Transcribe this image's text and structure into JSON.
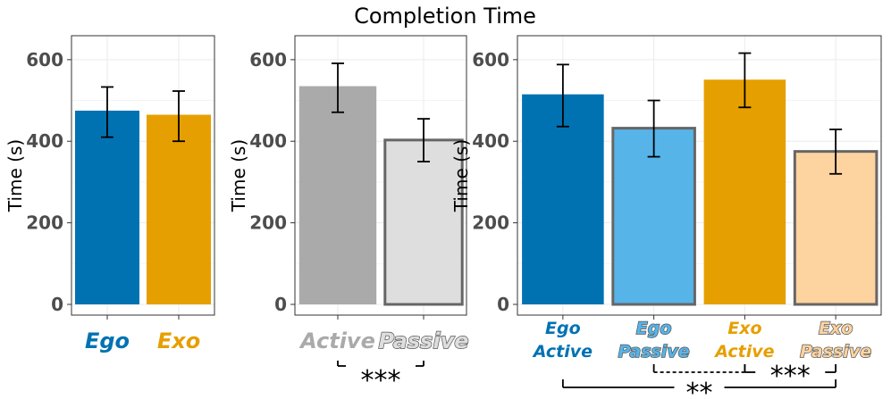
{
  "figure_title": "Completion Time",
  "chart_data": [
    {
      "type": "bar",
      "title": "Completion Time",
      "xlabel": "",
      "ylabel": "Time (s)",
      "ylim": [
        0,
        650
      ],
      "yticks": [
        "0",
        "200",
        "400",
        "600"
      ],
      "grid": true,
      "categories": [
        "Ego",
        "Exo"
      ],
      "values": [
        475,
        465
      ],
      "error_low": [
        410,
        400
      ],
      "error_high": [
        533,
        523
      ],
      "colors": [
        "#0072b2",
        "#e69f00"
      ],
      "outline": [
        false,
        false
      ],
      "label_colors": [
        "#0072b2",
        "#e69f00"
      ],
      "significance": []
    },
    {
      "type": "bar",
      "title": "Completion Time",
      "xlabel": "",
      "ylabel": "Time (s)",
      "ylim": [
        0,
        650
      ],
      "yticks": [
        "0",
        "200",
        "400",
        "600"
      ],
      "grid": true,
      "categories": [
        "Active",
        "Passive"
      ],
      "values": [
        535,
        403
      ],
      "error_low": [
        471,
        350
      ],
      "error_high": [
        591,
        455
      ],
      "colors": [
        "#aaaaaa",
        "#dedede"
      ],
      "outline": [
        false,
        true
      ],
      "label_colors": [
        "#aaaaaa",
        "#dedede"
      ],
      "significance": [
        {
          "between": [
            "Active",
            "Passive"
          ],
          "label": "***",
          "style": "solid"
        }
      ]
    },
    {
      "type": "bar",
      "title": "Completion Time",
      "xlabel": "",
      "ylabel": "Time (s)",
      "ylim": [
        0,
        650
      ],
      "yticks": [
        "0",
        "200",
        "400",
        "600"
      ],
      "grid": true,
      "categories": [
        "Ego Active",
        "Ego Passive",
        "Exo Active",
        "Exo Passive"
      ],
      "label_lines": [
        [
          "Ego",
          "Active"
        ],
        [
          "Ego",
          "Passive"
        ],
        [
          "Exo",
          "Active"
        ],
        [
          "Exo",
          "Passive"
        ]
      ],
      "values": [
        515,
        432,
        551,
        375
      ],
      "error_low": [
        436,
        362,
        483,
        320
      ],
      "error_high": [
        588,
        500,
        616,
        429
      ],
      "colors": [
        "#0072b2",
        "#56b4e9",
        "#e69f00",
        "#fdd3a0"
      ],
      "outline": [
        false,
        true,
        false,
        true
      ],
      "label_colors": [
        "#0072b2",
        "#56b4e9",
        "#e69f00",
        "#fdd3a0"
      ],
      "significance": [
        {
          "between": [
            "Ego Passive",
            "Exo Active"
          ],
          "label": "",
          "style": "dashed"
        },
        {
          "between": [
            "Exo Active",
            "Exo Passive"
          ],
          "label": "***",
          "style": "solid"
        },
        {
          "between": [
            "Ego Active",
            "Exo Passive"
          ],
          "label": "**",
          "style": "solid"
        }
      ]
    }
  ]
}
